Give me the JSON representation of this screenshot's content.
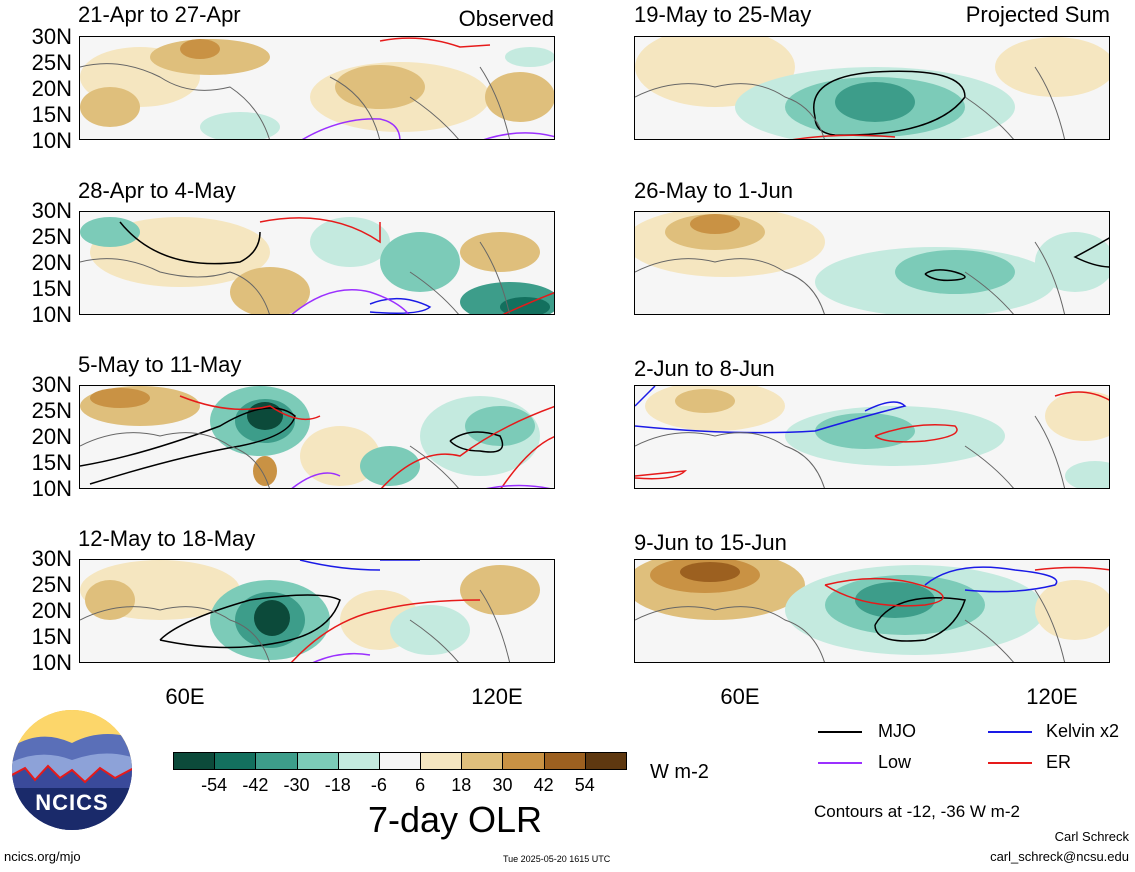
{
  "panels": [
    {
      "title": "21-Apr to 27-Apr",
      "corner": "Observed"
    },
    {
      "title": "28-Apr to 4-May",
      "corner": ""
    },
    {
      "title": "5-May to 11-May",
      "corner": ""
    },
    {
      "title": "12-May to 18-May",
      "corner": ""
    },
    {
      "title": "19-May to 25-May",
      "corner": "Projected Sum"
    },
    {
      "title": "26-May to 1-Jun",
      "corner": ""
    },
    {
      "title": "2-Jun to 8-Jun",
      "corner": ""
    },
    {
      "title": "9-Jun to 15-Jun",
      "corner": ""
    }
  ],
  "lat_labels": [
    "30N",
    "25N",
    "20N",
    "15N",
    "10N"
  ],
  "lon_labels": [
    "60E",
    "120E"
  ],
  "colorbar": {
    "colors": [
      "#0c4a3a",
      "#13705e",
      "#3d9d8a",
      "#7ccbb8",
      "#c4eadf",
      "#f6f6f6",
      "#f5e6c0",
      "#dfbf7c",
      "#c99244",
      "#9c6020",
      "#5e3810"
    ],
    "tick_labels": [
      "-54",
      "-42",
      "-30",
      "-18",
      "-6",
      "6",
      "18",
      "30",
      "42",
      "54"
    ],
    "unit": "W m-2",
    "title": "7-day OLR"
  },
  "legend": [
    {
      "label": "MJO",
      "color": "#000000"
    },
    {
      "label": "Kelvin x2",
      "color": "#1a1ae6"
    },
    {
      "label": "Low",
      "color": "#9b30ff"
    },
    {
      "label": "ER",
      "color": "#e61a1a"
    }
  ],
  "contours_note": "Contours at -12, -36 W m-2",
  "author": "Carl Schreck",
  "email": "carl_schreck@ncsu.edu",
  "site": "ncics.org/mjo",
  "timestamp": "Tue 2025-05-20 1615 UTC",
  "logo_text": "NCICS"
}
